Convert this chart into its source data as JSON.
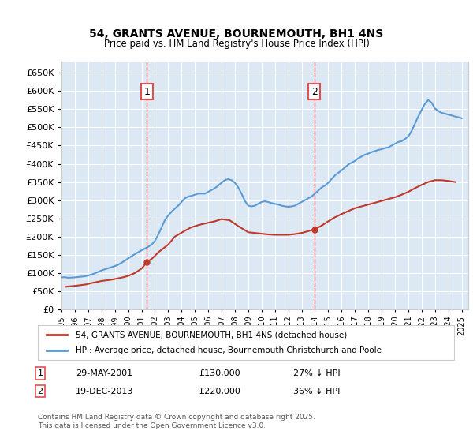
{
  "title": "54, GRANTS AVENUE, BOURNEMOUTH, BH1 4NS",
  "subtitle": "Price paid vs. HM Land Registry's House Price Index (HPI)",
  "ylabel": "",
  "ylim": [
    0,
    680000
  ],
  "yticks": [
    0,
    50000,
    100000,
    150000,
    200000,
    250000,
    300000,
    350000,
    400000,
    450000,
    500000,
    550000,
    600000,
    650000
  ],
  "xlim_start": 1995.0,
  "xlim_end": 2025.5,
  "bg_color": "#dce9f5",
  "plot_bg": "#dce9f5",
  "hpi_color": "#5b9bd5",
  "price_color": "#c0392b",
  "vline_color": "#e05050",
  "marker1_date": 2001.41,
  "marker1_price": 130000,
  "marker1_label": "1",
  "marker2_date": 2013.96,
  "marker2_price": 220000,
  "marker2_label": "2",
  "legend_line1": "54, GRANTS AVENUE, BOURNEMOUTH, BH1 4NS (detached house)",
  "legend_line2": "HPI: Average price, detached house, Bournemouth Christchurch and Poole",
  "footer1": "Contains HM Land Registry data © Crown copyright and database right 2025.",
  "footer2": "This data is licensed under the Open Government Licence v3.0.",
  "table_row1_num": "1",
  "table_row1_date": "29-MAY-2001",
  "table_row1_price": "£130,000",
  "table_row1_note": "27% ↓ HPI",
  "table_row2_num": "2",
  "table_row2_date": "19-DEC-2013",
  "table_row2_price": "£220,000",
  "table_row2_note": "36% ↓ HPI",
  "hpi_data_x": [
    1995.0,
    1995.25,
    1995.5,
    1995.75,
    1996.0,
    1996.25,
    1996.5,
    1996.75,
    1997.0,
    1997.25,
    1997.5,
    1997.75,
    1998.0,
    1998.25,
    1998.5,
    1998.75,
    1999.0,
    1999.25,
    1999.5,
    1999.75,
    2000.0,
    2000.25,
    2000.5,
    2000.75,
    2001.0,
    2001.25,
    2001.5,
    2001.75,
    2002.0,
    2002.25,
    2002.5,
    2002.75,
    2003.0,
    2003.25,
    2003.5,
    2003.75,
    2004.0,
    2004.25,
    2004.5,
    2004.75,
    2005.0,
    2005.25,
    2005.5,
    2005.75,
    2006.0,
    2006.25,
    2006.5,
    2006.75,
    2007.0,
    2007.25,
    2007.5,
    2007.75,
    2008.0,
    2008.25,
    2008.5,
    2008.75,
    2009.0,
    2009.25,
    2009.5,
    2009.75,
    2010.0,
    2010.25,
    2010.5,
    2010.75,
    2011.0,
    2011.25,
    2011.5,
    2011.75,
    2012.0,
    2012.25,
    2012.5,
    2012.75,
    2013.0,
    2013.25,
    2013.5,
    2013.75,
    2014.0,
    2014.25,
    2014.5,
    2014.75,
    2015.0,
    2015.25,
    2015.5,
    2015.75,
    2016.0,
    2016.25,
    2016.5,
    2016.75,
    2017.0,
    2017.25,
    2017.5,
    2017.75,
    2018.0,
    2018.25,
    2018.5,
    2018.75,
    2019.0,
    2019.25,
    2019.5,
    2019.75,
    2020.0,
    2020.25,
    2020.5,
    2020.75,
    2021.0,
    2021.25,
    2021.5,
    2021.75,
    2022.0,
    2022.25,
    2022.5,
    2022.75,
    2023.0,
    2023.25,
    2023.5,
    2023.75,
    2024.0,
    2024.25,
    2024.5,
    2024.75,
    2025.0
  ],
  "hpi_data_y": [
    88000,
    88500,
    87000,
    87500,
    88000,
    89000,
    90000,
    91000,
    93000,
    96000,
    99000,
    103000,
    107000,
    110000,
    113000,
    116000,
    119000,
    123000,
    128000,
    134000,
    140000,
    146000,
    152000,
    157000,
    162000,
    167000,
    172000,
    178000,
    188000,
    205000,
    225000,
    245000,
    258000,
    268000,
    277000,
    285000,
    295000,
    305000,
    310000,
    312000,
    315000,
    318000,
    318000,
    318000,
    323000,
    328000,
    333000,
    340000,
    348000,
    355000,
    358000,
    355000,
    348000,
    335000,
    318000,
    298000,
    285000,
    283000,
    285000,
    290000,
    295000,
    297000,
    295000,
    292000,
    290000,
    288000,
    285000,
    283000,
    282000,
    283000,
    285000,
    290000,
    295000,
    300000,
    305000,
    310000,
    318000,
    326000,
    335000,
    340000,
    348000,
    358000,
    368000,
    375000,
    382000,
    390000,
    398000,
    403000,
    408000,
    415000,
    420000,
    425000,
    428000,
    432000,
    435000,
    438000,
    440000,
    443000,
    445000,
    450000,
    455000,
    460000,
    462000,
    468000,
    475000,
    490000,
    510000,
    530000,
    548000,
    565000,
    575000,
    568000,
    552000,
    545000,
    540000,
    538000,
    535000,
    533000,
    530000,
    528000,
    525000
  ],
  "price_data_x": [
    1995.3,
    1995.5,
    1995.7,
    1996.1,
    1996.5,
    1996.9,
    1997.2,
    1997.6,
    1998.0,
    1998.4,
    1998.8,
    1999.2,
    1999.6,
    2000.0,
    2000.5,
    2001.0,
    2001.41,
    2001.8,
    2002.3,
    2003.0,
    2003.5,
    2004.2,
    2004.7,
    2005.3,
    2006.0,
    2006.5,
    2007.0,
    2007.6,
    2008.2,
    2009.0,
    2009.5,
    2010.0,
    2010.5,
    2011.0,
    2011.5,
    2012.0,
    2012.5,
    2013.0,
    2013.5,
    2013.96,
    2014.5,
    2015.0,
    2015.5,
    2016.0,
    2016.5,
    2017.0,
    2017.5,
    2018.0,
    2018.5,
    2019.0,
    2019.5,
    2020.0,
    2020.5,
    2021.0,
    2021.5,
    2022.0,
    2022.5,
    2023.0,
    2023.5,
    2024.0,
    2024.5
  ],
  "price_data_y": [
    62000,
    63000,
    63500,
    65000,
    67000,
    69000,
    72000,
    75000,
    78000,
    80000,
    82000,
    85000,
    88000,
    92000,
    100000,
    112000,
    130000,
    140000,
    158000,
    178000,
    200000,
    215000,
    225000,
    232000,
    238000,
    242000,
    248000,
    245000,
    230000,
    212000,
    210000,
    208000,
    206000,
    205000,
    205000,
    205000,
    207000,
    210000,
    215000,
    220000,
    230000,
    242000,
    253000,
    262000,
    270000,
    278000,
    283000,
    288000,
    293000,
    298000,
    303000,
    308000,
    315000,
    323000,
    333000,
    342000,
    350000,
    355000,
    355000,
    353000,
    350000
  ]
}
